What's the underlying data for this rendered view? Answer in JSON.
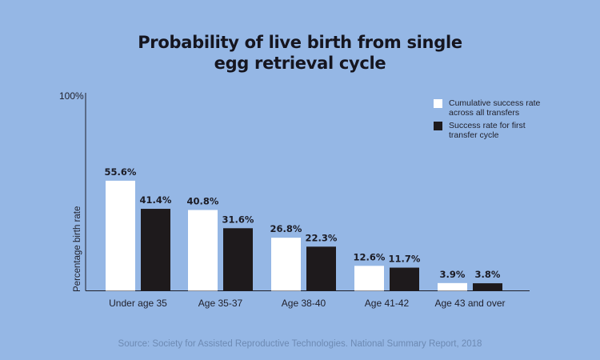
{
  "chart_data": {
    "type": "bar",
    "title": [
      "Probability of live birth from single",
      "egg retrieval cycle"
    ],
    "ylabel": "Percentage birth rate",
    "ymax_label": "100%",
    "ylim": [
      0,
      100
    ],
    "grid": false,
    "categories": [
      "Under age 35",
      "Age 35-37",
      "Age 38-40",
      "Age 41-42",
      "Age 43 and over"
    ],
    "series": [
      {
        "name": [
          "Cumulative success rate",
          "across all transfers"
        ],
        "color": "#ffffff",
        "values": [
          55.6,
          40.8,
          26.8,
          12.6,
          3.9
        ],
        "labels": [
          "55.6%",
          "40.8%",
          "26.8%",
          "12.6%",
          "3.9%"
        ]
      },
      {
        "name": [
          "Success rate for first",
          "transfer cycle"
        ],
        "color": "#1e1a1c",
        "values": [
          41.4,
          31.6,
          22.3,
          11.7,
          3.8
        ],
        "labels": [
          "41.4%",
          "31.6%",
          "22.3%",
          "11.7%",
          "3.8%"
        ]
      }
    ],
    "legend_position": "top-right",
    "source": "Source: Society for Assisted Reproductive Technologies. National Summary Report, 2018"
  }
}
